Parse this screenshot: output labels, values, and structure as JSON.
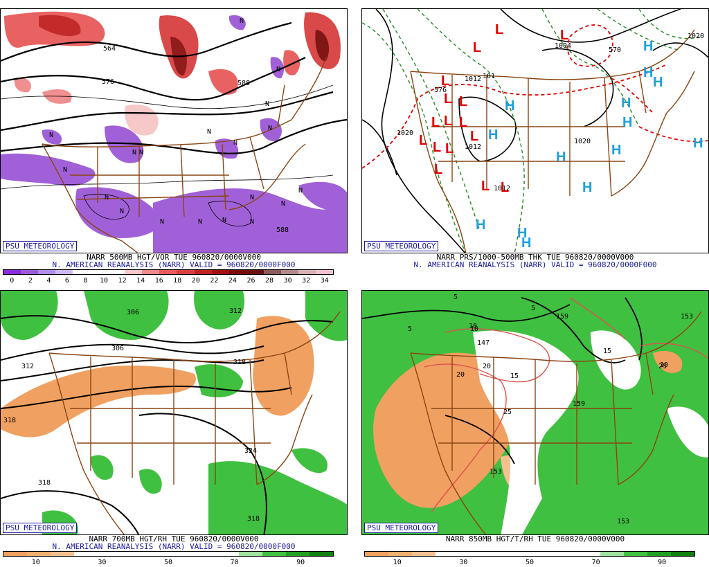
{
  "panels": [
    {
      "id": "vort500",
      "badge": "PSU METEOROLOGY",
      "title": "NARR 500MB HGT/VOR TUE 960820/0000V000",
      "subtitle": "N. AMERICAN REANALYSIS (NARR) VALID = 960820/0000F000",
      "colorbar": {
        "colors": [
          "#8a2be2",
          "#9b59d6",
          "#b08de8",
          "#cdb8f0",
          "#ffffff",
          "#ffffff",
          "#ffffff",
          "#f7c6c6",
          "#f08a8a",
          "#e85a5a",
          "#d84040",
          "#c02020",
          "#a01010",
          "#7a0a0a",
          "#6b1010",
          "#8b5a5a",
          "#b08a8a",
          "#d4b0b0",
          "#f0c0d0"
        ],
        "labels": [
          "0",
          "2",
          "4",
          "6",
          "8",
          "10",
          "12",
          "14",
          "16",
          "18",
          "20",
          "22",
          "24",
          "26",
          "28",
          "30",
          "32",
          "34"
        ]
      },
      "contour_labels": [
        "564",
        "576",
        "588",
        "588"
      ],
      "region_labels": [
        "N",
        "N",
        "N",
        "N",
        "N",
        "N",
        "N",
        "N",
        "N",
        "N",
        "N",
        "N",
        "N",
        "N",
        "N",
        "N",
        "N",
        "N",
        "N"
      ]
    },
    {
      "id": "thick",
      "badge": "PSU METEOROLOGY",
      "title": "NARR PRS/1000-500MB THK TUE 960820/0000V000",
      "subtitle": "N. AMERICAN REANALYSIS (NARR) VALID = 960820/0000F000",
      "contour_labels": [
        "1004",
        "1012",
        "101",
        "1020",
        "1020",
        "1020",
        "1012",
        "1012",
        "576",
        "570"
      ],
      "lows": [
        "L",
        "L",
        "L",
        "L",
        "L",
        "L",
        "L",
        "L",
        "L",
        "L",
        "L",
        "L",
        "L",
        "L",
        "L",
        "L"
      ],
      "highs": [
        "H",
        "H",
        "H",
        "H",
        "H",
        "H",
        "H",
        "H",
        "H",
        "H",
        "H",
        "H",
        "H",
        "H"
      ]
    },
    {
      "id": "rh700",
      "badge": "PSU METEOROLOGY",
      "title": "NARR 700MB HGT/RH TUE 960820/0000V000",
      "subtitle": "N. AMERICAN REANALYSIS (NARR) VALID = 960820/0000F000",
      "colorbar": {
        "colors": [
          "#f0a060",
          "#f0b070",
          "#f5c090",
          "#ffffff",
          "#ffffff",
          "#ffffff",
          "#ffffff",
          "#ffffff",
          "#ffffff",
          "#ffffff",
          "#a0e0a0",
          "#40c040",
          "#20a020",
          "#108010"
        ],
        "labels": [
          "10",
          "30",
          "50",
          "70",
          "90"
        ]
      },
      "contour_labels": [
        "306",
        "312",
        "306",
        "318",
        "312",
        "318",
        "324",
        "318",
        "318"
      ]
    },
    {
      "id": "t850",
      "badge": "PSU METEOROLOGY",
      "title": "NARR 850MB HGT/T/RH TUE 960820/0000V000",
      "subtitle": "",
      "colorbar": {
        "colors": [
          "#f0a060",
          "#f0b070",
          "#f5c090",
          "#ffffff",
          "#ffffff",
          "#ffffff",
          "#ffffff",
          "#ffffff",
          "#ffffff",
          "#ffffff",
          "#a0e0a0",
          "#40c040",
          "#20a020",
          "#108010"
        ],
        "labels": [
          "10",
          "30",
          "50",
          "70",
          "90"
        ]
      },
      "contour_labels": [
        "5",
        "5",
        "5",
        "10",
        "20",
        "20",
        "15",
        "15",
        "25",
        "25",
        "10",
        "10",
        "147",
        "153",
        "159",
        "153",
        "153",
        "159"
      ]
    }
  ]
}
